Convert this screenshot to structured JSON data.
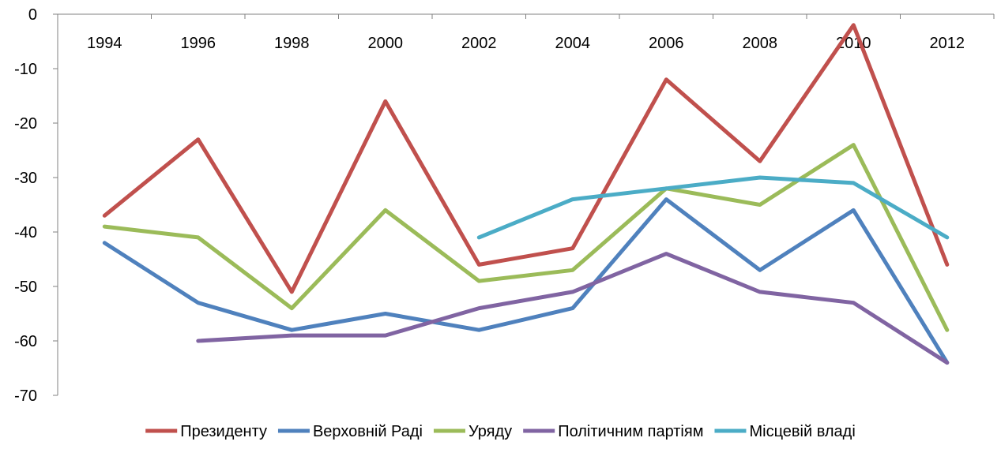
{
  "chart_data": {
    "type": "line",
    "title": "",
    "xlabel": "",
    "ylabel": "",
    "categories": [
      "1994",
      "1996",
      "1998",
      "2000",
      "2002",
      "2004",
      "2006",
      "2008",
      "2010",
      "2012"
    ],
    "ylim": [
      -70,
      0
    ],
    "yticks": [
      0,
      -10,
      -20,
      -30,
      -40,
      -50,
      -60,
      -70
    ],
    "x_axis_position": "top",
    "grid": false,
    "legend_position": "bottom",
    "series": [
      {
        "name": "Президенту",
        "color": "#c0504d",
        "values": [
          -37,
          -23,
          -51,
          -16,
          -46,
          -43,
          -12,
          -27,
          -2,
          -46
        ]
      },
      {
        "name": "Верховній Раді",
        "color": "#4f81bd",
        "values": [
          -42,
          -53,
          -58,
          -55,
          -58,
          -54,
          -34,
          -47,
          -36,
          -64
        ]
      },
      {
        "name": "Уряду",
        "color": "#9bbb59",
        "values": [
          -39,
          -41,
          -54,
          -36,
          -49,
          -47,
          -32,
          -35,
          -24,
          -58
        ]
      },
      {
        "name": "Політичним партіям",
        "color": "#8064a2",
        "values": [
          null,
          -60,
          -59,
          -59,
          -54,
          -51,
          -44,
          -51,
          -53,
          -64
        ]
      },
      {
        "name": "Місцевій владі",
        "color": "#4bacc6",
        "values": [
          null,
          null,
          null,
          null,
          -41,
          -34,
          -32,
          -30,
          -31,
          -41
        ]
      }
    ]
  }
}
